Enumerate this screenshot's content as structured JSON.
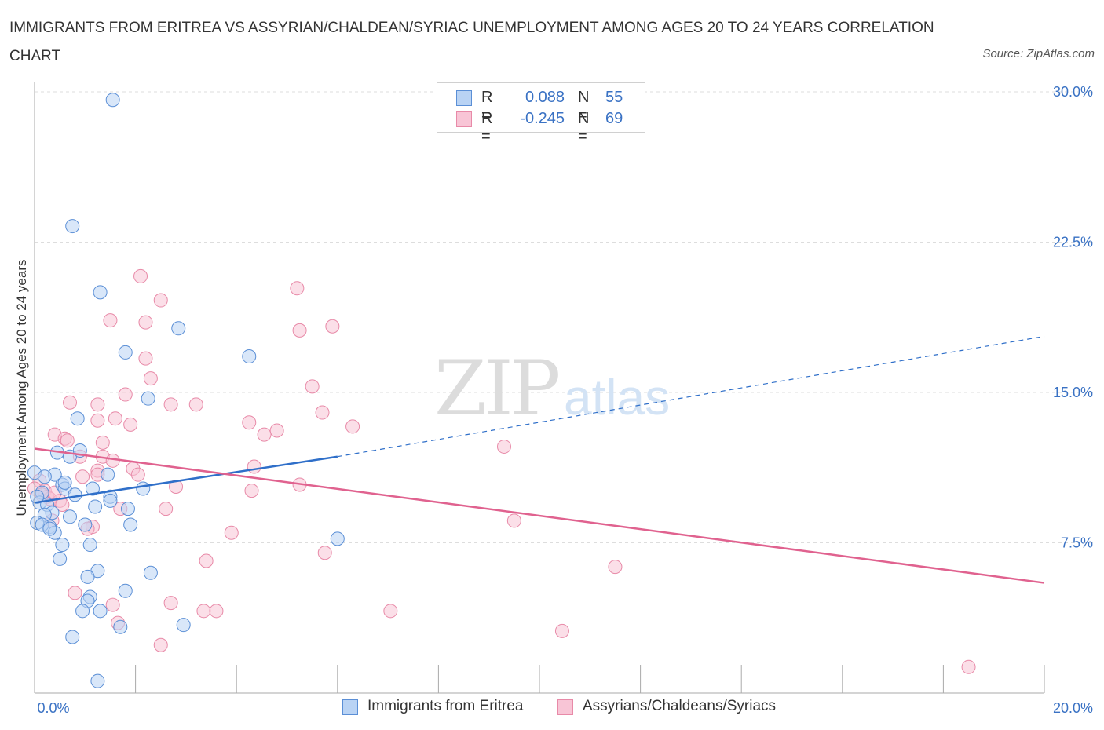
{
  "header": {
    "title": "IMMIGRANTS FROM ERITREA VS ASSYRIAN/CHALDEAN/SYRIAC UNEMPLOYMENT AMONG AGES 20 TO 24 YEARS CORRELATION CHART",
    "source": "Source: ZipAtlas.com"
  },
  "legend": {
    "r_label": "R =",
    "n_label": "N =",
    "series": [
      {
        "r": "0.088",
        "n": "55"
      },
      {
        "r": "-0.245",
        "n": "69"
      }
    ]
  },
  "colors": {
    "blue_fill": "#b9d3f4",
    "blue_stroke": "#5b8fd6",
    "blue_line": "#2f6fc9",
    "pink_fill": "#f8c5d6",
    "pink_stroke": "#e88aa8",
    "pink_line": "#e0628f",
    "grid": "#dddddd",
    "axis_text": "#3a72c4"
  },
  "chart_data": {
    "type": "scatter",
    "title": "IMMIGRANTS FROM ERITREA VS ASSYRIAN/CHALDEAN/SYRIAC UNEMPLOYMENT AMONG AGES 20 TO 24 YEARS CORRELATION CHART",
    "xlabel": "",
    "ylabel": "Unemployment Among Ages 20 to 24 years",
    "xlim": [
      0,
      20
    ],
    "ylim": [
      0,
      30
    ],
    "x_tick_labels": [
      "0.0%",
      "20.0%"
    ],
    "y_ticks": [
      7.5,
      15,
      22.5,
      30
    ],
    "y_tick_labels": [
      "7.5%",
      "15.0%",
      "22.5%",
      "30.0%"
    ],
    "grid": true,
    "watermark": "ZIPatlas",
    "series": [
      {
        "name": "Immigrants from Eritrea",
        "trend": {
          "x0": 0,
          "y0": 9.5,
          "x1": 6.0,
          "y1": 11.8,
          "x_ext": 20,
          "y_ext": 17.8
        },
        "points": [
          [
            1.55,
            29.6
          ],
          [
            0.75,
            23.3
          ],
          [
            1.3,
            20.0
          ],
          [
            2.85,
            18.2
          ],
          [
            1.8,
            17.0
          ],
          [
            4.25,
            16.8
          ],
          [
            2.25,
            14.7
          ],
          [
            0.85,
            13.7
          ],
          [
            0.45,
            12.0
          ],
          [
            0.7,
            11.8
          ],
          [
            0.9,
            12.1
          ],
          [
            0.0,
            11.0
          ],
          [
            0.4,
            10.9
          ],
          [
            0.55,
            10.4
          ],
          [
            0.6,
            10.2
          ],
          [
            0.15,
            10.0
          ],
          [
            1.45,
            10.9
          ],
          [
            1.15,
            10.2
          ],
          [
            1.5,
            9.8
          ],
          [
            2.15,
            10.2
          ],
          [
            0.8,
            9.9
          ],
          [
            0.1,
            9.5
          ],
          [
            0.25,
            9.4
          ],
          [
            0.35,
            9.0
          ],
          [
            0.2,
            8.9
          ],
          [
            0.7,
            8.8
          ],
          [
            1.2,
            9.3
          ],
          [
            1.85,
            9.2
          ],
          [
            1.5,
            9.6
          ],
          [
            0.05,
            8.5
          ],
          [
            0.3,
            8.3
          ],
          [
            0.4,
            8.0
          ],
          [
            1.9,
            8.4
          ],
          [
            1.0,
            8.4
          ],
          [
            0.55,
            7.4
          ],
          [
            1.1,
            7.4
          ],
          [
            6.0,
            7.7
          ],
          [
            0.5,
            6.7
          ],
          [
            1.25,
            6.1
          ],
          [
            2.3,
            6.0
          ],
          [
            1.05,
            5.8
          ],
          [
            1.8,
            5.1
          ],
          [
            1.1,
            4.8
          ],
          [
            1.05,
            4.6
          ],
          [
            0.95,
            4.1
          ],
          [
            1.3,
            4.1
          ],
          [
            1.7,
            3.3
          ],
          [
            2.95,
            3.4
          ],
          [
            0.75,
            2.8
          ],
          [
            1.25,
            0.6
          ],
          [
            0.05,
            9.8
          ],
          [
            0.15,
            8.4
          ],
          [
            0.3,
            8.2
          ],
          [
            0.6,
            10.5
          ],
          [
            0.2,
            10.8
          ]
        ]
      },
      {
        "name": "Assyrians/Chaldeans/Syriacs",
        "trend": {
          "x0": 0,
          "y0": 12.2,
          "x1": 20,
          "y1": 5.5
        },
        "points": [
          [
            2.1,
            20.8
          ],
          [
            5.2,
            20.2
          ],
          [
            2.5,
            19.6
          ],
          [
            1.5,
            18.6
          ],
          [
            2.2,
            18.5
          ],
          [
            5.9,
            18.3
          ],
          [
            5.25,
            18.1
          ],
          [
            2.2,
            16.7
          ],
          [
            2.3,
            15.7
          ],
          [
            5.5,
            15.3
          ],
          [
            1.8,
            14.9
          ],
          [
            0.7,
            14.5
          ],
          [
            1.25,
            14.4
          ],
          [
            2.7,
            14.4
          ],
          [
            3.2,
            14.4
          ],
          [
            5.7,
            14.0
          ],
          [
            1.6,
            13.7
          ],
          [
            1.25,
            13.6
          ],
          [
            4.25,
            13.5
          ],
          [
            1.9,
            13.4
          ],
          [
            6.3,
            13.3
          ],
          [
            4.8,
            13.1
          ],
          [
            4.55,
            12.9
          ],
          [
            0.4,
            12.9
          ],
          [
            0.6,
            12.7
          ],
          [
            0.65,
            12.6
          ],
          [
            1.35,
            12.5
          ],
          [
            9.3,
            12.3
          ],
          [
            0.9,
            11.8
          ],
          [
            1.35,
            11.8
          ],
          [
            1.55,
            11.6
          ],
          [
            1.25,
            11.1
          ],
          [
            1.95,
            11.2
          ],
          [
            4.35,
            11.3
          ],
          [
            2.05,
            10.9
          ],
          [
            1.25,
            10.9
          ],
          [
            0.95,
            10.8
          ],
          [
            0.1,
            10.6
          ],
          [
            0.0,
            10.2
          ],
          [
            0.2,
            10.1
          ],
          [
            0.25,
            9.8
          ],
          [
            2.8,
            10.3
          ],
          [
            4.3,
            10.1
          ],
          [
            5.25,
            10.4
          ],
          [
            0.3,
            9.7
          ],
          [
            0.5,
            9.6
          ],
          [
            0.55,
            9.4
          ],
          [
            2.6,
            9.2
          ],
          [
            1.7,
            9.2
          ],
          [
            0.35,
            8.6
          ],
          [
            1.15,
            8.3
          ],
          [
            1.05,
            8.2
          ],
          [
            3.9,
            8.0
          ],
          [
            9.5,
            8.6
          ],
          [
            5.75,
            7.0
          ],
          [
            3.4,
            6.6
          ],
          [
            11.5,
            6.3
          ],
          [
            0.8,
            5.0
          ],
          [
            2.7,
            4.5
          ],
          [
            1.55,
            4.4
          ],
          [
            3.35,
            4.1
          ],
          [
            3.6,
            4.1
          ],
          [
            7.05,
            4.1
          ],
          [
            1.65,
            3.5
          ],
          [
            10.45,
            3.1
          ],
          [
            2.5,
            2.4
          ],
          [
            18.5,
            1.3
          ],
          [
            0.15,
            9.9
          ],
          [
            0.4,
            10.0
          ]
        ]
      }
    ]
  },
  "bottom_legend": [
    "Immigrants from Eritrea",
    "Assyrians/Chaldeans/Syriacs"
  ]
}
